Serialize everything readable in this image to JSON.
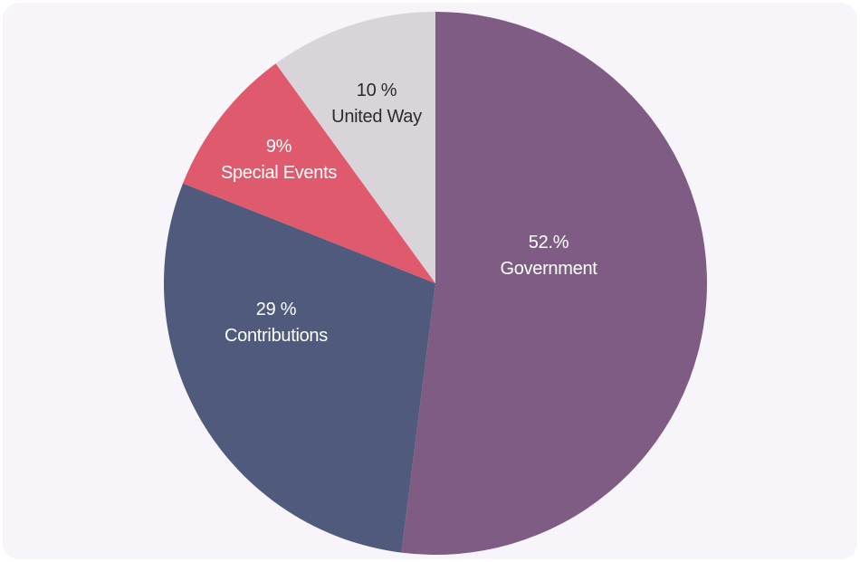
{
  "chart_data": {
    "type": "pie",
    "title": "",
    "slices": [
      {
        "label": "Government",
        "percent_text": "52.%",
        "value": 52,
        "color": "#7f5c84",
        "text_color": "#ffffff"
      },
      {
        "label": "Contributions",
        "percent_text": "29 %",
        "value": 29,
        "color": "#4f5a7c",
        "text_color": "#ffffff"
      },
      {
        "label": "Special Events",
        "percent_text": "9%",
        "value": 9,
        "color": "#e05a6d",
        "text_color": "#ffffff"
      },
      {
        "label": "United Way",
        "percent_text": "10 %",
        "value": 10,
        "color": "#d9d4d9",
        "text_color": "#2b2b2b"
      }
    ],
    "start_angle": "12 o'clock",
    "direction": "clockwise",
    "legend": "none"
  },
  "colors": {
    "background": "#f7f4fa"
  }
}
